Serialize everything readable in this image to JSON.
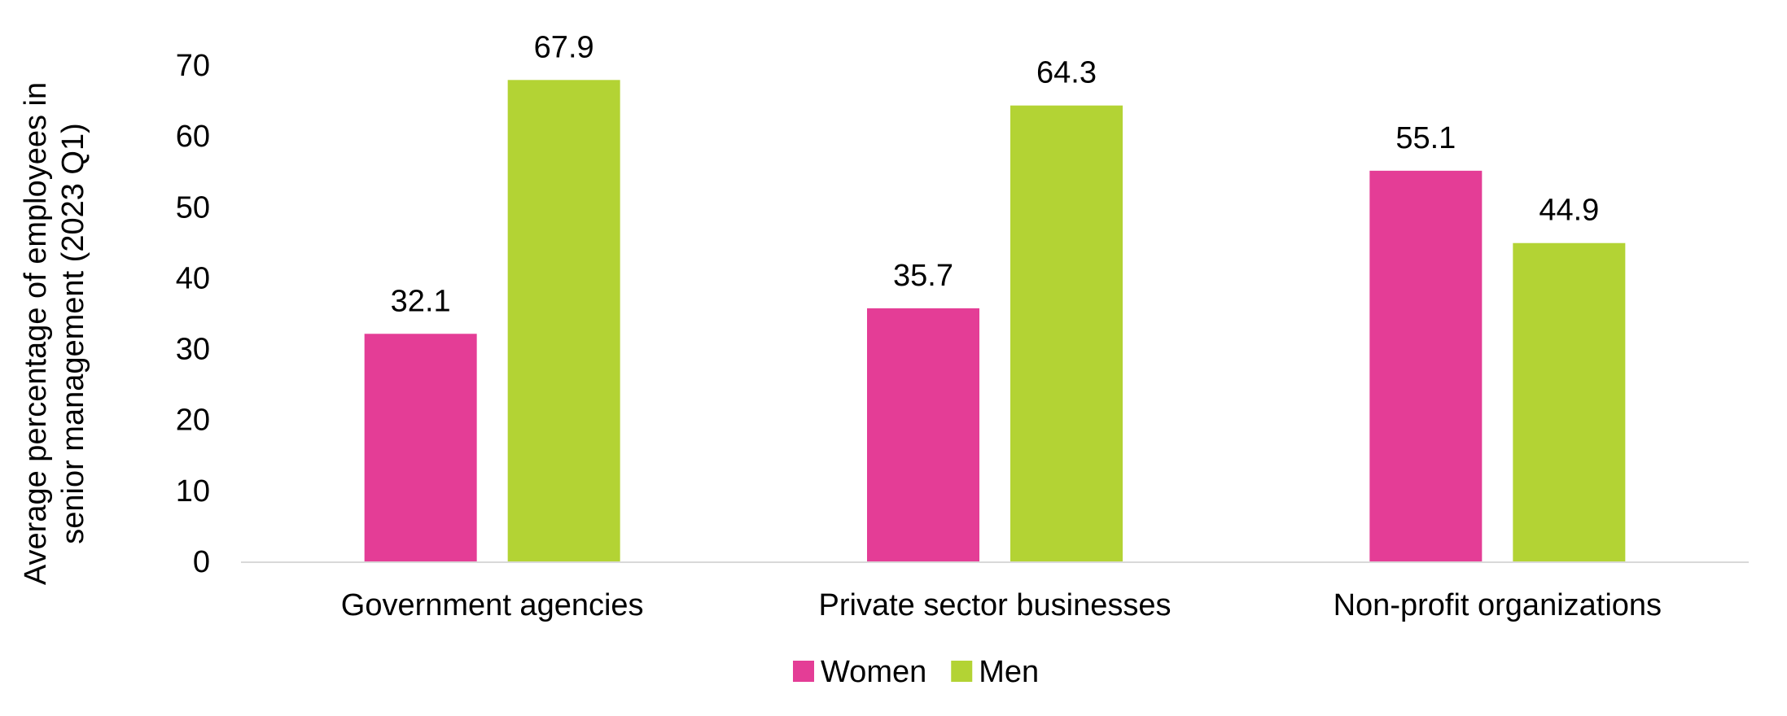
{
  "chart_data": {
    "type": "bar",
    "title": "",
    "xlabel": "",
    "ylabel": "Average percentage of employees in senior management (2023 Q1)",
    "ylabel_lines": [
      "Average percentage of employees in",
      "senior management  (2023 Q1)"
    ],
    "categories": [
      "Government agencies",
      "Private sector businesses",
      "Non-profit organizations"
    ],
    "series": [
      {
        "name": "Women",
        "values": [
          32.1,
          35.7,
          55.1
        ],
        "color": "#e43d96"
      },
      {
        "name": "Men",
        "values": [
          67.9,
          64.3,
          44.9
        ],
        "color": "#b3d334"
      }
    ],
    "ylim": [
      0,
      70
    ],
    "yticks": [
      0,
      10,
      20,
      30,
      40,
      50,
      60,
      70
    ],
    "grid": false,
    "legend_position": "bottom",
    "data_labels": true,
    "axis_color": "#d9d9d9"
  }
}
